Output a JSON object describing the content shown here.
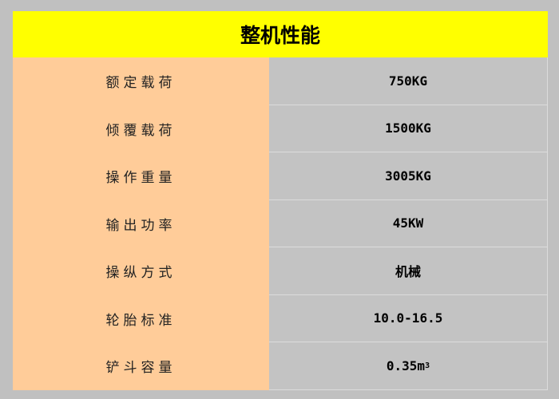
{
  "title": "整机性能",
  "rows": [
    {
      "label": "额定载荷",
      "value": "750KG"
    },
    {
      "label": "倾覆载荷",
      "value": "1500KG"
    },
    {
      "label": "操作重量",
      "value": "3005KG"
    },
    {
      "label": "输出功率",
      "value": "45KW"
    },
    {
      "label": "操纵方式",
      "value": "机械"
    },
    {
      "label": "轮胎标准",
      "value": "10.0-16.5"
    },
    {
      "label": "铲斗容量",
      "value": "0.35m",
      "value_sup": "3"
    }
  ],
  "colors": {
    "header": "#ffff00",
    "label_col": "#ffcc99",
    "value_col": "#c3c3c3",
    "background": "#c0c0c0"
  }
}
